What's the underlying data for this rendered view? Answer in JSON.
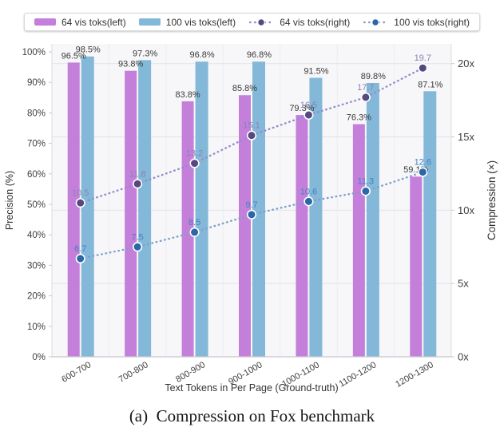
{
  "page": {
    "caption": "(a)  Compression on Fox benchmark",
    "background": "#ffffff"
  },
  "colors": {
    "plot_bg": "#f7f7f9",
    "gridline": "#e2e2e9",
    "vgridline": "#ededf2",
    "axis_line": "#c9c9cf",
    "plot_border": "#dcdce2",
    "tick_label": "#3f3f3f",
    "bar_label": "#3a3a3a",
    "axis_title": "#2e2e2e",
    "xlabel_color": "#333333"
  },
  "legend": {
    "items": [
      {
        "label": "64 vis toks(left)",
        "marker": "bar",
        "color": "#c47fda"
      },
      {
        "label": "100 vis toks(left)",
        "marker": "bar",
        "color": "#84b8d8"
      },
      {
        "label": "64 vis toks(right)",
        "marker": "line-dot",
        "dot_color": "#55497f",
        "line_color": "#938ccc"
      },
      {
        "label": "100 vis toks(right)",
        "marker": "line-dot",
        "dot_color": "#2a67a6",
        "line_color": "#7fa0c8"
      }
    ]
  },
  "chart_data": {
    "type": "bar",
    "subtype": "grouped bars with dotted point-lines, dual y-axis",
    "title": "",
    "categories": [
      "600-700",
      "700-800",
      "800-900",
      "900-1000",
      "1000-1100",
      "1100-1200",
      "1200-1300"
    ],
    "series": [
      {
        "name": "64 vis toks(left)",
        "kind": "bar",
        "axis": "left",
        "color": "#c47fda",
        "values": [
          96.5,
          93.8,
          83.8,
          85.8,
          79.3,
          76.3,
          59.1
        ]
      },
      {
        "name": "100 vis toks(left)",
        "kind": "bar",
        "axis": "left",
        "color": "#84b8d8",
        "values": [
          98.5,
          97.3,
          96.8,
          96.8,
          91.5,
          89.8,
          87.1
        ]
      },
      {
        "name": "64 vis toks(right)",
        "kind": "line",
        "axis": "right",
        "dot_color": "#55497f",
        "line_color": "#938ccc",
        "label_color": "#8983b1",
        "values": [
          10.5,
          11.8,
          13.2,
          15.1,
          16.5,
          17.7,
          19.7
        ]
      },
      {
        "name": "100 vis toks(right)",
        "kind": "line",
        "axis": "right",
        "dot_color": "#2a67a6",
        "line_color": "#7fa0c8",
        "label_color": "#4181c1",
        "values": [
          6.7,
          7.5,
          8.5,
          9.7,
          10.6,
          11.3,
          12.6
        ]
      }
    ],
    "xlabel": "Text Tokens in Per Page (Ground-truth)",
    "left_axis": {
      "title": "Precision (%)",
      "min": 0,
      "max": 100,
      "tick_values": [
        0,
        10,
        20,
        30,
        40,
        50,
        60,
        70,
        80,
        90,
        100
      ],
      "tick_labels": [
        "0%",
        "10%",
        "20%",
        "30%",
        "40%",
        "50%",
        "60%",
        "70%",
        "80%",
        "90%",
        "100%"
      ]
    },
    "right_axis": {
      "title": "Compression (×)",
      "min": 0,
      "max": 20.8,
      "tick_values": [
        0,
        5,
        10,
        15,
        20
      ],
      "tick_labels": [
        "0x",
        "5x",
        "10x",
        "15x",
        "20x"
      ]
    },
    "grid": true,
    "legend_position": "top",
    "bar_value_suffix": "%"
  }
}
